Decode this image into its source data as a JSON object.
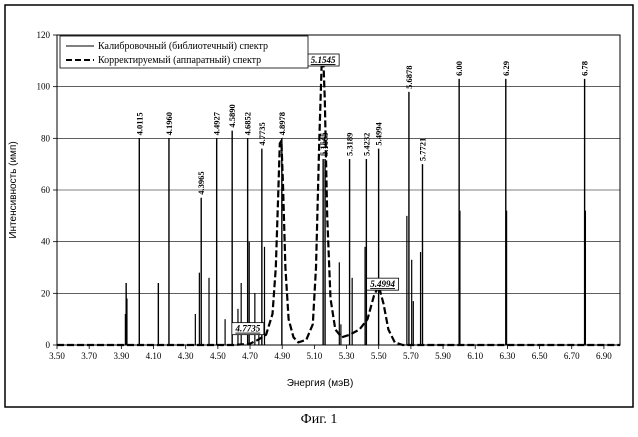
{
  "figure_caption": "Фиг. 1",
  "chart_data": {
    "type": "line",
    "title": "",
    "xlabel": "Энергия (мэВ)",
    "ylabel": "Интенсивность (имп)",
    "xlim": [
      3.5,
      7.0
    ],
    "ylim": [
      0,
      120
    ],
    "x_ticks": [
      "3.50",
      "3.70",
      "3.90",
      "4.10",
      "4.30",
      "4.50",
      "4.70",
      "4.90",
      "5.10",
      "5.30",
      "5.50",
      "5.70",
      "5.90",
      "6.10",
      "6.30",
      "6.50",
      "6.70",
      "6.90"
    ],
    "y_ticks": [
      "0",
      "20",
      "40",
      "60",
      "80",
      "100",
      "120"
    ],
    "grid": true,
    "legend_position": "top-left",
    "series": [
      {
        "name": "Калибровочный (библиотечный) спектр",
        "style": "solid",
        "peaks": [
          {
            "x": 3.93,
            "y": 24,
            "label": ""
          },
          {
            "x": 4.0115,
            "y": 80,
            "label": "4.0115"
          },
          {
            "x": 4.13,
            "y": 24,
            "label": ""
          },
          {
            "x": 4.196,
            "y": 80,
            "label": "4.1960"
          },
          {
            "x": 4.3965,
            "y": 57,
            "label": "4.3965"
          },
          {
            "x": 4.4927,
            "y": 80,
            "label": "4.4927"
          },
          {
            "x": 4.589,
            "y": 83,
            "label": "4.5890"
          },
          {
            "x": 4.6852,
            "y": 80,
            "label": "4.6852"
          },
          {
            "x": 4.7735,
            "y": 76,
            "label": "4.7735"
          },
          {
            "x": 4.8978,
            "y": 80,
            "label": "4.8978"
          },
          {
            "x": 5.1545,
            "y": 72,
            "label": "5.1545"
          },
          {
            "x": 5.1665,
            "y": 72,
            "label": "5.1665"
          },
          {
            "x": 5.3189,
            "y": 72,
            "label": "5.3189"
          },
          {
            "x": 5.4232,
            "y": 72,
            "label": "5.4232"
          },
          {
            "x": 5.4994,
            "y": 76,
            "label": "5.4994"
          },
          {
            "x": 5.6878,
            "y": 98,
            "label": "5.6878"
          },
          {
            "x": 5.7721,
            "y": 70,
            "label": "5.7721"
          },
          {
            "x": 6.0,
            "y": 103,
            "label": "6.00"
          },
          {
            "x": 6.29,
            "y": 103,
            "label": "6.29"
          },
          {
            "x": 6.78,
            "y": 103,
            "label": "6.78"
          }
        ],
        "secondary_lines": [
          {
            "x": 3.925,
            "y": 12
          },
          {
            "x": 3.935,
            "y": 18
          },
          {
            "x": 4.36,
            "y": 12
          },
          {
            "x": 4.385,
            "y": 28
          },
          {
            "x": 4.445,
            "y": 26
          },
          {
            "x": 4.545,
            "y": 10
          },
          {
            "x": 4.625,
            "y": 14
          },
          {
            "x": 4.645,
            "y": 24
          },
          {
            "x": 4.695,
            "y": 40
          },
          {
            "x": 4.73,
            "y": 20
          },
          {
            "x": 4.79,
            "y": 38
          },
          {
            "x": 4.755,
            "y": 8
          },
          {
            "x": 5.255,
            "y": 32
          },
          {
            "x": 5.265,
            "y": 8
          },
          {
            "x": 5.335,
            "y": 26
          },
          {
            "x": 5.415,
            "y": 38
          },
          {
            "x": 5.675,
            "y": 50
          },
          {
            "x": 5.705,
            "y": 33
          },
          {
            "x": 5.715,
            "y": 17
          },
          {
            "x": 5.76,
            "y": 36
          },
          {
            "x": 6.005,
            "y": 52
          },
          {
            "x": 6.295,
            "y": 52
          },
          {
            "x": 6.785,
            "y": 52
          }
        ]
      },
      {
        "name": "Корректируемый (аппаратный) спектр",
        "style": "dashed",
        "points": [
          [
            3.5,
            0
          ],
          [
            4.6,
            0
          ],
          [
            4.7,
            0.5
          ],
          [
            4.75,
            2
          ],
          [
            4.8,
            4
          ],
          [
            4.84,
            12
          ],
          [
            4.86,
            30
          ],
          [
            4.875,
            58
          ],
          [
            4.885,
            78
          ],
          [
            4.895,
            79
          ],
          [
            4.905,
            62
          ],
          [
            4.92,
            30
          ],
          [
            4.94,
            10
          ],
          [
            4.97,
            3
          ],
          [
            5.0,
            1
          ],
          [
            5.05,
            2
          ],
          [
            5.09,
            8
          ],
          [
            5.11,
            30
          ],
          [
            5.13,
            78
          ],
          [
            5.145,
            108
          ],
          [
            5.155,
            112
          ],
          [
            5.165,
            95
          ],
          [
            5.18,
            50
          ],
          [
            5.2,
            18
          ],
          [
            5.23,
            6
          ],
          [
            5.27,
            3
          ],
          [
            5.32,
            4
          ],
          [
            5.38,
            6
          ],
          [
            5.43,
            10
          ],
          [
            5.47,
            19
          ],
          [
            5.5,
            23
          ],
          [
            5.53,
            16
          ],
          [
            5.56,
            6
          ],
          [
            5.6,
            1
          ],
          [
            5.65,
            0
          ],
          [
            7.0,
            0
          ]
        ]
      }
    ],
    "annotations": [
      {
        "text": "5.1545",
        "x": 5.1545,
        "y": 108
      },
      {
        "text": "4.7735",
        "x": 4.7735,
        "y": 4
      },
      {
        "text": "5.4994",
        "x": 5.4994,
        "y": 22
      }
    ]
  }
}
